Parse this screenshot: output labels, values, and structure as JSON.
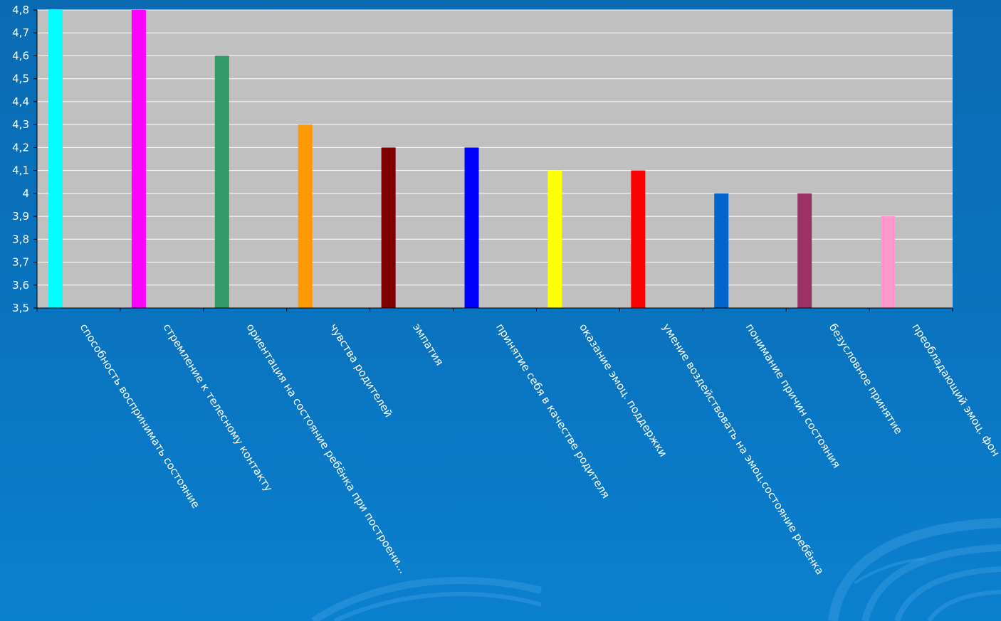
{
  "colors": {
    "background": "#0a70bb",
    "plot_area": "#c0c0c0",
    "gridline": "#ffffff",
    "text": "#ffffff"
  },
  "chart_data": {
    "type": "bar",
    "title": "",
    "xlabel": "",
    "ylabel": "",
    "ylim": [
      3.5,
      4.8
    ],
    "y_ticks": [
      "3,5",
      "3,6",
      "3,7",
      "3,8",
      "3,9",
      "4",
      "4,1",
      "4,2",
      "4,3",
      "4,4",
      "4,5",
      "4,6",
      "4,7",
      "4,8"
    ],
    "grid": true,
    "legend": "none",
    "categories": [
      "способность воспринимать состояние",
      "стремление к телесному контакту",
      "ориентация на состояние ребёнка при построени...",
      "чувства родителей",
      "эмпатия",
      "принятие себя в качестве родителя",
      "оказание эмоц. поддержки",
      "умение воздействовать на эмоц.состояние ребёнка",
      "понимание причин состояния",
      "безусловное принятие",
      "преобладающий эмоц. фон"
    ],
    "values": [
      4.8,
      4.8,
      4.6,
      4.3,
      4.2,
      4.2,
      4.1,
      4.1,
      4.0,
      4.0,
      3.9
    ],
    "bar_colors": [
      "#00ffff",
      "#ff00ff",
      "#339966",
      "#ff9900",
      "#800000",
      "#0000ff",
      "#ffff00",
      "#ff0000",
      "#0066cc",
      "#993366",
      "#ff99cc"
    ]
  }
}
